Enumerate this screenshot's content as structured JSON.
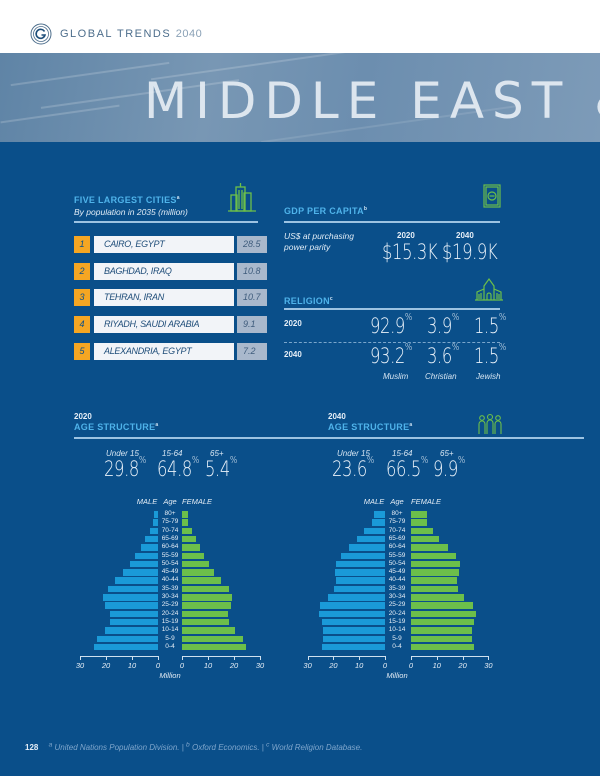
{
  "header": {
    "brand": "GLOBAL TRENDS",
    "brand_year": "2040",
    "hero_title": "MIDDLE EAST &"
  },
  "cities": {
    "title": "FIVE LARGEST CITIES",
    "title_note": "a",
    "subtitle": "By population in 2035 (million)",
    "icon": "buildings-icon",
    "rows": [
      {
        "rank": "1",
        "name": "CAIRO, EGYPT",
        "value": "28.5"
      },
      {
        "rank": "2",
        "name": "BAGHDAD, IRAQ",
        "value": "10.8"
      },
      {
        "rank": "3",
        "name": "TEHRAN, IRAN",
        "value": "10.7"
      },
      {
        "rank": "4",
        "name": "RIYADH, SAUDI ARABIA",
        "value": "9.1"
      },
      {
        "rank": "5",
        "name": "ALEXANDRIA, EGYPT",
        "value": "7.2"
      }
    ]
  },
  "gdp": {
    "title": "GDP PER CAPITA",
    "title_note": "b",
    "icon": "currency-bill-icon",
    "desc_line1": "US$ at purchasing",
    "desc_line2": "power parity",
    "year_2020": "2020",
    "year_2040": "2040",
    "value_2020": "$15.3K",
    "value_2040": "$19.9K"
  },
  "religion": {
    "title": "RELIGION",
    "title_note": "c",
    "icon": "church-icon",
    "rows": [
      {
        "year": "2020",
        "muslim": "92.9",
        "christian": "3.9",
        "jewish": "1.5"
      },
      {
        "year": "2040",
        "muslim": "93.2",
        "christian": "3.6",
        "jewish": "1.5"
      }
    ],
    "pct": "%",
    "labels": {
      "muslim": "Muslim",
      "christian": "Christian",
      "jewish": "Jewish"
    }
  },
  "age_2020": {
    "year": "2020",
    "title": "AGE STRUCTURE",
    "title_note": "a",
    "groups": [
      {
        "label": "Under 15",
        "value": "29.8"
      },
      {
        "label": "15-64",
        "value": "64.8"
      },
      {
        "label": "65+",
        "value": "5.4"
      }
    ]
  },
  "age_2040": {
    "year": "2040",
    "title": "AGE STRUCTURE",
    "title_note": "a",
    "icon": "people-icon",
    "groups": [
      {
        "label": "Under 15",
        "value": "23.6"
      },
      {
        "label": "15-64",
        "value": "66.5"
      },
      {
        "label": "65+",
        "value": "9.9"
      }
    ]
  },
  "pyramid_labels": {
    "male": "MALE",
    "age": "Age",
    "female": "FEMALE",
    "unit": "Million",
    "ticks": [
      "30",
      "20",
      "10",
      "0"
    ]
  },
  "chart_data": [
    {
      "type": "bar",
      "title": "2020 Age Structure (population pyramid)",
      "xlabel": "Million",
      "ylabel": "Age",
      "xlim": [
        0,
        30
      ],
      "orientation": "horizontal",
      "categories": [
        "80+",
        "75-79",
        "70-74",
        "65-69",
        "60-64",
        "55-59",
        "50-54",
        "45-49",
        "40-44",
        "35-39",
        "30-34",
        "25-29",
        "20-24",
        "15-19",
        "10-14",
        "5-9",
        "0-4"
      ],
      "series": [
        {
          "name": "MALE",
          "color": "#1a9ad8",
          "values": [
            1.7,
            2.0,
            3.2,
            5.1,
            6.7,
            8.9,
            10.9,
            13.5,
            16.5,
            19.4,
            21.3,
            20.3,
            18.3,
            18.3,
            20.5,
            23.6,
            24.7
          ]
        },
        {
          "name": "FEMALE",
          "color": "#6cbf4a",
          "values": [
            2.4,
            2.4,
            3.7,
            5.3,
            6.9,
            8.6,
            10.3,
            12.3,
            14.9,
            17.9,
            19.4,
            18.8,
            17.5,
            18.0,
            20.2,
            23.5,
            24.5
          ]
        }
      ],
      "summary": {
        "Under 15": 29.8,
        "15-64": 64.8,
        "65+": 5.4
      }
    },
    {
      "type": "bar",
      "title": "2040 Age Structure (population pyramid)",
      "xlabel": "Million",
      "ylabel": "Age",
      "xlim": [
        0,
        30
      ],
      "orientation": "horizontal",
      "categories": [
        "80+",
        "75-79",
        "70-74",
        "65-69",
        "60-64",
        "55-59",
        "50-54",
        "45-49",
        "40-44",
        "35-39",
        "30-34",
        "25-29",
        "20-24",
        "15-19",
        "10-14",
        "5-9",
        "0-4"
      ],
      "series": [
        {
          "name": "MALE",
          "color": "#1a9ad8",
          "values": [
            4.4,
            5.2,
            8.1,
            10.8,
            14.0,
            17.0,
            18.9,
            19.3,
            18.8,
            19.8,
            22.2,
            25.3,
            25.4,
            24.4,
            23.9,
            23.9,
            24.5
          ]
        },
        {
          "name": "FEMALE",
          "color": "#6cbf4a",
          "values": [
            6.1,
            6.1,
            8.5,
            11.0,
            14.2,
            17.3,
            19.0,
            18.6,
            17.9,
            18.4,
            20.7,
            23.9,
            25.1,
            24.3,
            23.7,
            23.7,
            24.5
          ]
        }
      ],
      "summary": {
        "Under 15": 23.6,
        "15-64": 66.5,
        "65+": 9.9
      }
    }
  ],
  "footer": {
    "page": "128",
    "sources": [
      {
        "note": "a",
        "text": "United Nations Population Division."
      },
      {
        "note": "b",
        "text": "Oxford Economics."
      },
      {
        "note": "c",
        "text": "World Religion Database."
      }
    ],
    "sep": " | "
  }
}
